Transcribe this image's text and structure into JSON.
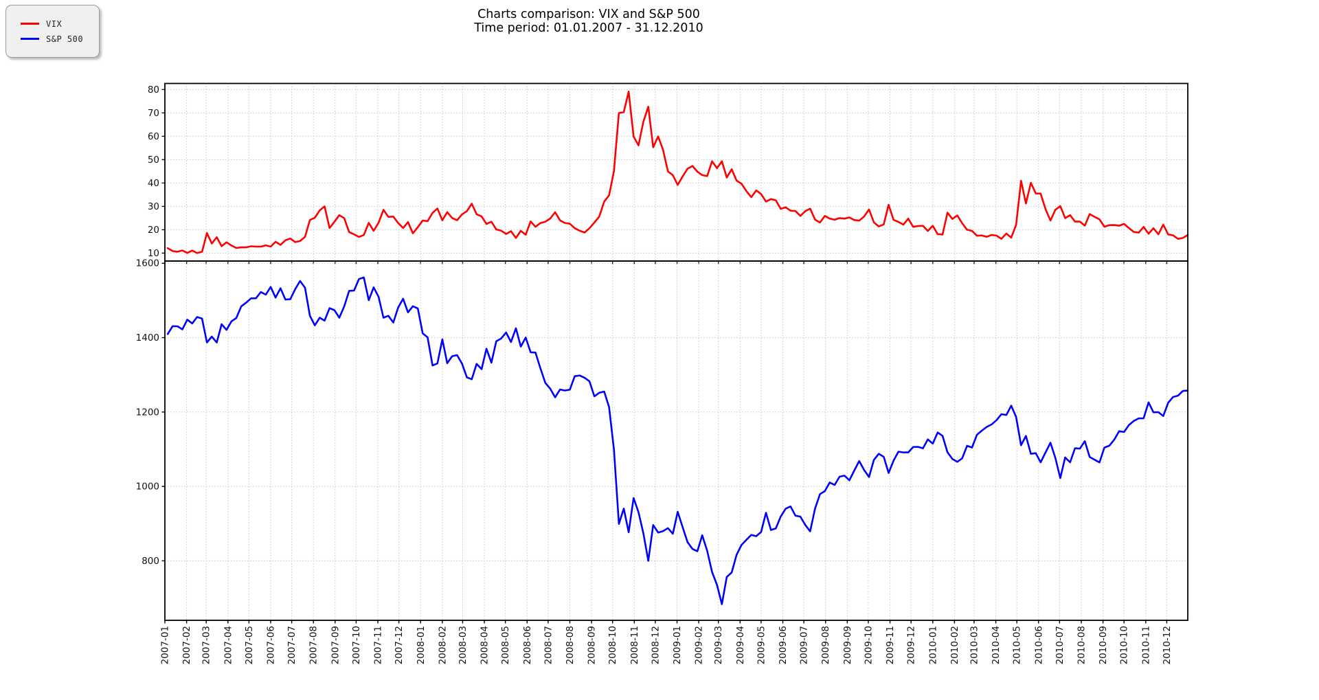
{
  "title": {
    "line1": "Charts comparison: VIX and S&P 500",
    "line2": "Time period: 01.01.2007 - 31.12.2010"
  },
  "legend": {
    "items": [
      {
        "label": "VIX",
        "color": "#ff0000"
      },
      {
        "label": "S&P 500",
        "color": "#0000ff"
      }
    ]
  },
  "chart_data": {
    "type": "line",
    "layout": "two_stacked_subplots_shared_x",
    "grid": {
      "style": "dotted",
      "color": "#c8c8c8"
    },
    "x_axis": {
      "start_date": "2007-01-05",
      "step_days": 7,
      "range": [
        "2007-01-01",
        "2010-12-31"
      ],
      "tick_labels": [
        "2007-01",
        "2007-02",
        "2007-03",
        "2007-04",
        "2007-05",
        "2007-06",
        "2007-07",
        "2007-08",
        "2007-09",
        "2007-10",
        "2007-11",
        "2007-12",
        "2008-01",
        "2008-02",
        "2008-03",
        "2008-04",
        "2008-05",
        "2008-06",
        "2008-07",
        "2008-08",
        "2008-09",
        "2008-10",
        "2008-11",
        "2008-12",
        "2009-01",
        "2009-02",
        "2009-03",
        "2009-04",
        "2009-05",
        "2009-06",
        "2009-07",
        "2009-08",
        "2009-09",
        "2009-10",
        "2009-11",
        "2009-12",
        "2010-01",
        "2010-02",
        "2010-03",
        "2010-04",
        "2010-05",
        "2010-06",
        "2010-07",
        "2010-08",
        "2010-09",
        "2010-10",
        "2010-11",
        "2010-12"
      ]
    },
    "subplots": [
      {
        "name": "VIX",
        "color": "#ff0000",
        "ylim": [
          6.6,
          82.6
        ],
        "y_ticks": [
          10,
          20,
          30,
          40,
          50,
          60,
          70,
          80
        ],
        "values": [
          12.14,
          10.89,
          10.59,
          11.14,
          10.08,
          11.1,
          10.02,
          10.58,
          18.61,
          14.09,
          16.79,
          12.95,
          14.64,
          13.23,
          12.2,
          12.45,
          12.45,
          12.91,
          12.76,
          12.76,
          13.34,
          12.78,
          14.84,
          13.51,
          15.47,
          16.23,
          14.72,
          15.15,
          16.95,
          24.17,
          25.16,
          28.3,
          29.99,
          20.72,
          23.38,
          26.23,
          24.93,
          19.0,
          18.0,
          16.91,
          17.73,
          22.96,
          19.56,
          23.01,
          28.5,
          25.49,
          25.61,
          22.87,
          20.74,
          23.27,
          18.47,
          21.1,
          23.94,
          23.68,
          27.18,
          29.08,
          24.02,
          27.49,
          25.02,
          24.06,
          26.54,
          27.95,
          31.16,
          26.62,
          25.72,
          22.45,
          23.46,
          20.13,
          19.6,
          18.18,
          19.4,
          16.47,
          19.55,
          17.83,
          23.56,
          21.23,
          22.87,
          23.44,
          24.81,
          27.49,
          24.0,
          22.88,
          22.57,
          20.66,
          19.58,
          18.81,
          20.65,
          23.06,
          25.66,
          32.07,
          34.74,
          45.14,
          69.95,
          70.33,
          79.13,
          59.89,
          56.1,
          66.31,
          72.67,
          55.28,
          59.93,
          54.28,
          44.93,
          43.38,
          39.19,
          42.82,
          46.11,
          47.28,
          44.84,
          43.37,
          42.93,
          49.33,
          46.35,
          49.33,
          42.36,
          45.89,
          41.04,
          39.7,
          36.53,
          33.94,
          36.82,
          35.3,
          32.05,
          33.12,
          32.63,
          28.92,
          29.62,
          28.15,
          27.99,
          25.93,
          27.95,
          29.02,
          24.34,
          23.09,
          25.92,
          24.76,
          24.27,
          25.01,
          24.76,
          25.26,
          24.15,
          23.92,
          25.61,
          28.68,
          23.12,
          21.43,
          22.27,
          30.69,
          24.2,
          23.36,
          22.19,
          24.74,
          21.25,
          21.59,
          21.68,
          19.47,
          21.68,
          18.13,
          17.91,
          27.31,
          24.62,
          26.11,
          22.73,
          20.02,
          19.5,
          17.42,
          17.58,
          16.97,
          17.77,
          17.47,
          16.14,
          18.36,
          16.62,
          22.05,
          40.95,
          31.24,
          40.1,
          35.54,
          35.48,
          28.74,
          23.95,
          28.53,
          30.12,
          24.98,
          26.25,
          23.47,
          23.5,
          21.74,
          26.7,
          25.49,
          24.45,
          21.31,
          21.99,
          22.01,
          21.71,
          22.5,
          20.71,
          19.03,
          18.78,
          21.2,
          18.26,
          20.61,
          18.04,
          22.22,
          18.01,
          17.61,
          16.11,
          16.47,
          17.75
        ]
      },
      {
        "name": "S&P 500",
        "color": "#0000ff",
        "ylim": [
          640,
          1606
        ],
        "y_ticks": [
          800,
          1000,
          1200,
          1400,
          1600
        ],
        "values": [
          1409.71,
          1430.73,
          1430.5,
          1422.18,
          1448.39,
          1438.06,
          1455.54,
          1451.19,
          1387.17,
          1402.84,
          1386.95,
          1436.11,
          1420.86,
          1443.76,
          1452.85,
          1484.35,
          1494.07,
          1505.62,
          1505.85,
          1522.75,
          1515.73,
          1536.34,
          1507.67,
          1532.91,
          1502.56,
          1503.35,
          1530.44,
          1552.5,
          1534.1,
          1458.95,
          1433.06,
          1453.64,
          1445.94,
          1479.37,
          1473.99,
          1453.55,
          1484.25,
          1525.75,
          1526.75,
          1557.59,
          1561.8,
          1500.63,
          1535.28,
          1509.65,
          1453.7,
          1458.74,
          1440.7,
          1481.14,
          1504.66,
          1467.95,
          1484.46,
          1478.49,
          1411.63,
          1401.02,
          1325.19,
          1330.61,
          1395.42,
          1331.29,
          1349.99,
          1353.11,
          1330.63,
          1293.37,
          1288.14,
          1329.51,
          1315.22,
          1370.4,
          1332.83,
          1390.33,
          1397.84,
          1413.9,
          1388.28,
          1425.35,
          1375.93,
          1400.38,
          1360.68,
          1360.03,
          1317.93,
          1278.38,
          1262.9,
          1239.49,
          1260.68,
          1257.76,
          1260.31,
          1296.32,
          1298.2,
          1292.2,
          1282.83,
          1242.31,
          1251.7,
          1255.08,
          1213.27,
          1099.23,
          899.22,
          940.55,
          876.77,
          968.75,
          930.99,
          873.29,
          800.03,
          896.24,
          876.07,
          879.73,
          887.88,
          872.8,
          931.8,
          890.35,
          850.12,
          831.95,
          825.88,
          868.6,
          826.84,
          770.05,
          735.09,
          683.38,
          756.55,
          768.54,
          815.94,
          842.5,
          856.56,
          869.6,
          866.23,
          877.52,
          929.23,
          882.88,
          887.0,
          919.14,
          940.09,
          946.21,
          921.23,
          918.9,
          896.42,
          879.13,
          940.38,
          979.26,
          987.48,
          1010.48,
          1004.09,
          1026.13,
          1028.93,
          1016.4,
          1042.73,
          1068.3,
          1044.38,
          1025.21,
          1071.49,
          1087.68,
          1079.6,
          1036.19,
          1069.3,
          1093.48,
          1091.38,
          1091.49,
          1105.98,
          1106.41,
          1102.47,
          1126.48,
          1115.1,
          1144.98,
          1136.03,
          1091.76,
          1073.87,
          1066.19,
          1075.51,
          1109.17,
          1104.49,
          1138.7,
          1149.99,
          1159.9,
          1166.59,
          1178.1,
          1194.37,
          1192.13,
          1217.28,
          1186.69,
          1110.88,
          1135.68,
          1087.69,
          1089.41,
          1064.88,
          1091.6,
          1117.51,
          1076.76,
          1022.58,
          1077.96,
          1064.88,
          1102.66,
          1101.6,
          1121.64,
          1079.25,
          1071.69,
          1064.59,
          1104.51,
          1109.55,
          1125.59,
          1148.67,
          1146.24,
          1165.15,
          1176.19,
          1183.08,
          1183.26,
          1225.85,
          1199.21,
          1199.73,
          1189.4,
          1224.71,
          1240.4,
          1243.91,
          1256.77,
          1257.64
        ]
      }
    ]
  }
}
